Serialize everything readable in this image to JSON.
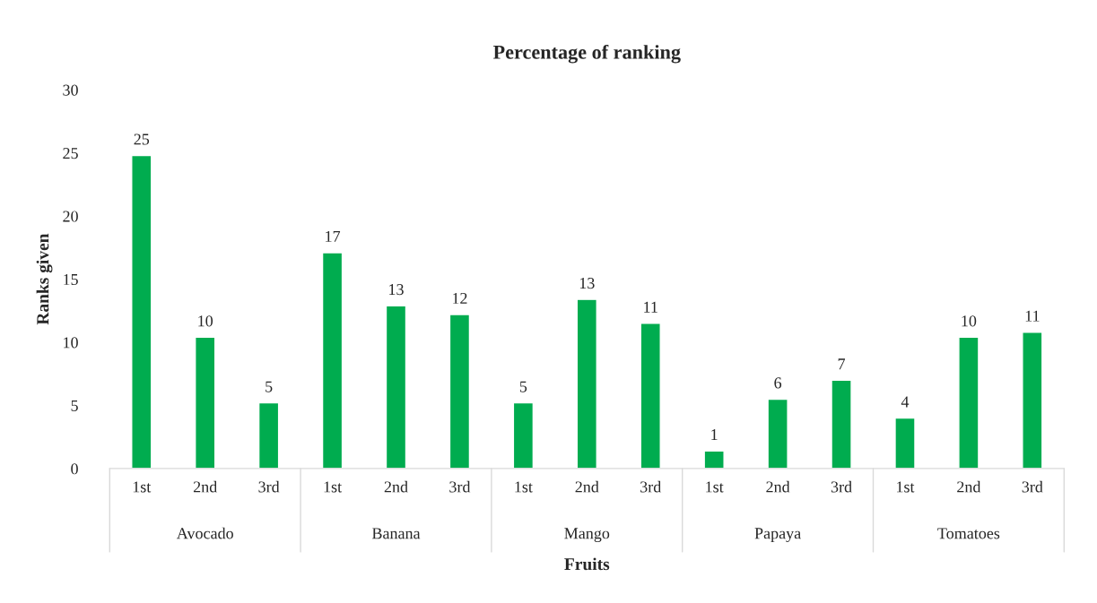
{
  "chart_data": {
    "type": "bar",
    "title": "Percentage of ranking",
    "xlabel": "Fruits",
    "ylabel": "Ranks given",
    "categories": [
      "1st",
      "2nd",
      "3rd",
      "1st",
      "2nd",
      "3rd",
      "1st",
      "2nd",
      "3rd",
      "1st",
      "2nd",
      "3rd",
      "1st",
      "2nd",
      "3rd"
    ],
    "values": [
      24.8,
      10.4,
      5.2,
      17.1,
      12.9,
      12.2,
      5.2,
      13.4,
      11.5,
      1.4,
      5.5,
      7.0,
      4.0,
      10.4,
      10.8
    ],
    "value_labels": [
      "25",
      "10",
      "5",
      "17",
      "13",
      "12",
      "5",
      "13",
      "11",
      "1",
      "6",
      "7",
      "4",
      "10",
      "11"
    ],
    "color": "#00ac4f",
    "annotations": [
      "Avocado",
      "Banana",
      "Mango",
      "Papaya",
      "Tomatoes"
    ],
    "ylim": [
      0,
      30
    ],
    "yticks": [
      0,
      5,
      10,
      15,
      20,
      25,
      30
    ],
    "grid": false,
    "legend": false
  }
}
